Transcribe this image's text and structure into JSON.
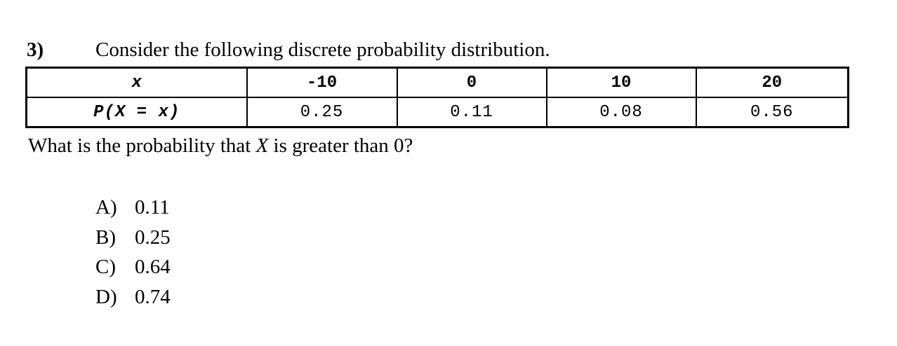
{
  "question": {
    "number": "3)",
    "prompt": "Consider the following discrete probability distribution.",
    "text_before": "What is the probability that ",
    "variable": "X",
    "text_after": " is greater than 0?"
  },
  "table": {
    "header_label": "x",
    "row_label": "P(X = x)",
    "x_values": [
      "-10",
      "0",
      "10",
      "20"
    ],
    "probabilities": [
      "0.25",
      "0.11",
      "0.08",
      "0.56"
    ]
  },
  "choices": [
    {
      "letter": "A)",
      "value": "0.11"
    },
    {
      "letter": "B)",
      "value": "0.25"
    },
    {
      "letter": "C)",
      "value": "0.64"
    },
    {
      "letter": "D)",
      "value": "0.74"
    }
  ]
}
